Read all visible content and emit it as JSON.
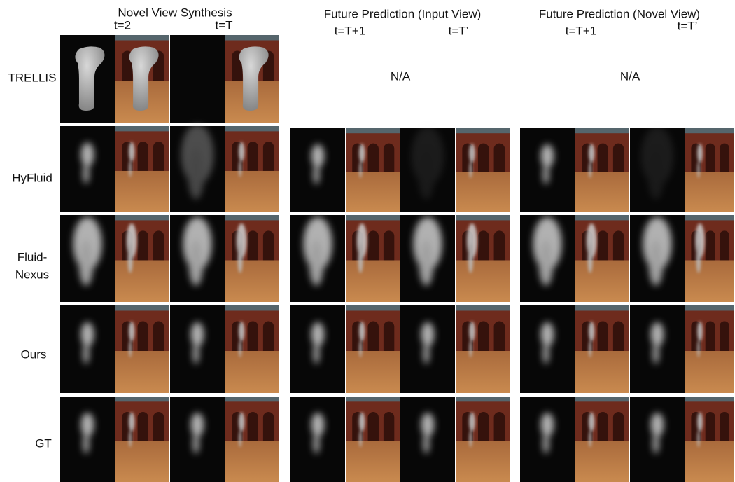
{
  "columns": [
    {
      "title": "Novel View Synthesis",
      "times": [
        "t=2",
        "t=T"
      ]
    },
    {
      "title": "Future Prediction (Input View)",
      "times": [
        "t=T+1",
        "t=T’"
      ]
    },
    {
      "title": "Future Prediction (Novel View)",
      "times": [
        "t=T+1",
        "t=T’"
      ]
    }
  ],
  "rows": [
    {
      "label": "TRELLIS",
      "note": "N/A"
    },
    {
      "label": "HyFluid"
    },
    {
      "label": [
        "Fluid-",
        "Nexus"
      ]
    },
    {
      "label": "Ours"
    },
    {
      "label": "GT"
    }
  ]
}
